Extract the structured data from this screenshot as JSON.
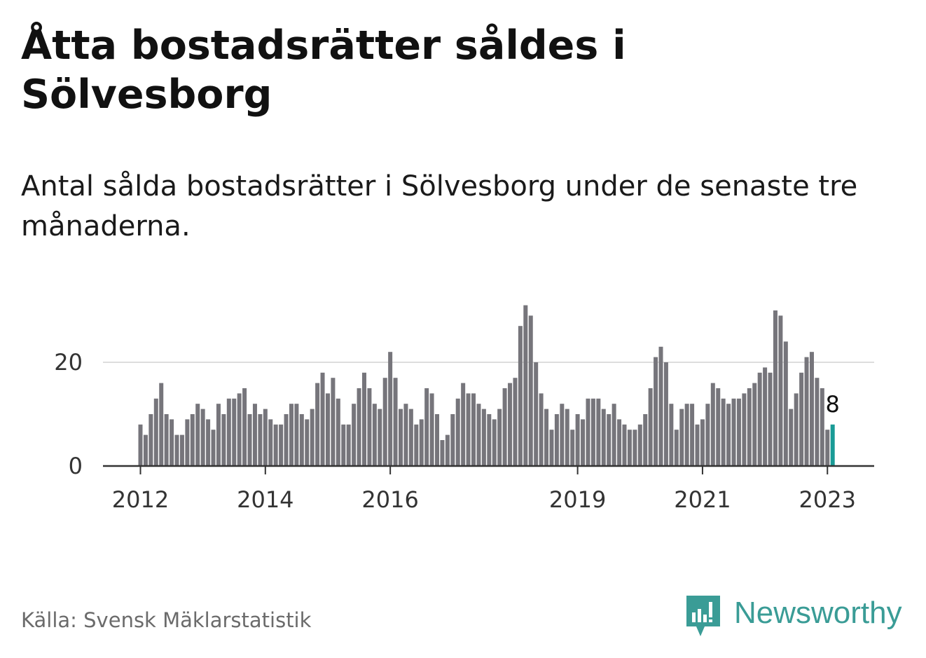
{
  "title": "Åtta bostadsrätter såldes i Sölvesborg",
  "subtitle": "Antal sålda bostadsrätter i Sölvesborg under de senaste tre månaderna.",
  "source": "Källa: Svensk Mäklarstatistik",
  "brand": {
    "name": "Newsworthy",
    "logo_icon": "newsworthy-logo-icon"
  },
  "colors": {
    "bar": "#76757b",
    "highlight": "#1a9b96",
    "grid": "#dddddd",
    "axis": "#333333",
    "brand": "#3a9c96"
  },
  "chart_data": {
    "type": "bar",
    "title": "Åtta bostadsrätter såldes i Sölvesborg",
    "subtitle": "Antal sålda bostadsrätter i Sölvesborg under de senaste tre månaderna.",
    "x_start": "2012-01",
    "x_ticks": [
      {
        "label": "2012",
        "month": "2012-01"
      },
      {
        "label": "2014",
        "month": "2014-01"
      },
      {
        "label": "2016",
        "month": "2016-01"
      },
      {
        "label": "2019",
        "month": "2019-01"
      },
      {
        "label": "2021",
        "month": "2021-01"
      },
      {
        "label": "2023",
        "month": "2023-01"
      }
    ],
    "y_ticks": [
      0,
      20
    ],
    "ylim": [
      0,
      32
    ],
    "grid": true,
    "values": [
      8,
      6,
      10,
      13,
      16,
      10,
      9,
      6,
      6,
      9,
      10,
      12,
      11,
      9,
      7,
      12,
      10,
      13,
      13,
      14,
      15,
      10,
      12,
      10,
      11,
      9,
      8,
      8,
      10,
      12,
      12,
      10,
      9,
      11,
      16,
      18,
      14,
      17,
      13,
      8,
      8,
      12,
      15,
      18,
      15,
      12,
      11,
      17,
      22,
      17,
      11,
      12,
      11,
      8,
      9,
      15,
      14,
      10,
      5,
      6,
      10,
      13,
      16,
      14,
      14,
      12,
      11,
      10,
      9,
      11,
      15,
      16,
      17,
      27,
      31,
      29,
      20,
      14,
      11,
      7,
      10,
      12,
      11,
      7,
      10,
      9,
      13,
      13,
      13,
      11,
      10,
      12,
      9,
      8,
      7,
      7,
      8,
      10,
      15,
      21,
      23,
      20,
      12,
      7,
      11,
      12,
      12,
      8,
      9,
      12,
      16,
      15,
      13,
      12,
      13,
      13,
      14,
      15,
      16,
      18,
      19,
      18,
      30,
      29,
      24,
      11,
      14,
      18,
      21,
      22,
      17,
      15,
      7,
      8
    ],
    "highlight_last": true,
    "last_label": "8"
  }
}
